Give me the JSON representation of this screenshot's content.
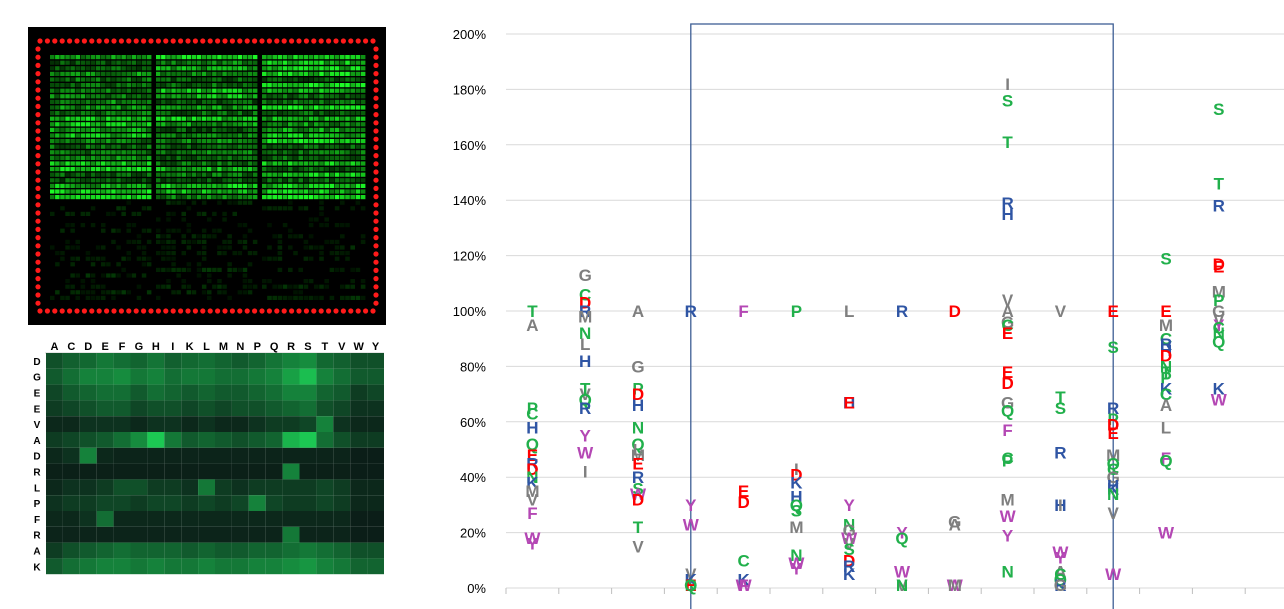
{
  "heatmap": {
    "columns": [
      "A",
      "C",
      "D",
      "E",
      "F",
      "G",
      "H",
      "I",
      "K",
      "L",
      "M",
      "N",
      "P",
      "Q",
      "R",
      "S",
      "T",
      "V",
      "W",
      "Y"
    ],
    "rows": [
      "D",
      "G",
      "E",
      "E",
      "V",
      "A",
      "D",
      "R",
      "L",
      "P",
      "F",
      "R",
      "A",
      "K"
    ],
    "color": "#1fd15a",
    "intensity": [
      [
        0.3,
        0.38,
        0.42,
        0.5,
        0.45,
        0.4,
        0.48,
        0.38,
        0.42,
        0.45,
        0.4,
        0.35,
        0.4,
        0.48,
        0.55,
        0.6,
        0.42,
        0.38,
        0.3,
        0.3
      ],
      [
        0.35,
        0.45,
        0.55,
        0.55,
        0.6,
        0.5,
        0.55,
        0.45,
        0.5,
        0.5,
        0.45,
        0.45,
        0.5,
        0.55,
        0.7,
        0.85,
        0.55,
        0.45,
        0.35,
        0.35
      ],
      [
        0.25,
        0.35,
        0.4,
        0.45,
        0.45,
        0.35,
        0.45,
        0.4,
        0.35,
        0.4,
        0.35,
        0.35,
        0.4,
        0.45,
        0.55,
        0.55,
        0.4,
        0.35,
        0.2,
        0.25
      ],
      [
        0.2,
        0.25,
        0.3,
        0.35,
        0.35,
        0.25,
        0.3,
        0.3,
        0.25,
        0.3,
        0.25,
        0.3,
        0.3,
        0.35,
        0.4,
        0.45,
        0.3,
        0.25,
        0.15,
        0.15
      ],
      [
        0.1,
        0.1,
        0.15,
        0.15,
        0.15,
        0.1,
        0.15,
        0.15,
        0.1,
        0.15,
        0.1,
        0.1,
        0.15,
        0.2,
        0.2,
        0.25,
        0.55,
        0.15,
        0.1,
        0.1
      ],
      [
        0.2,
        0.25,
        0.3,
        0.35,
        0.45,
        0.6,
        0.9,
        0.5,
        0.35,
        0.4,
        0.35,
        0.3,
        0.35,
        0.4,
        0.8,
        0.9,
        0.45,
        0.3,
        0.2,
        0.2
      ],
      [
        0.1,
        0.15,
        0.55,
        0.1,
        0.08,
        0.08,
        0.08,
        0.08,
        0.08,
        0.08,
        0.08,
        0.08,
        0.08,
        0.08,
        0.08,
        0.08,
        0.08,
        0.08,
        0.05,
        0.05
      ],
      [
        0.06,
        0.06,
        0.06,
        0.06,
        0.06,
        0.06,
        0.06,
        0.06,
        0.06,
        0.06,
        0.06,
        0.06,
        0.06,
        0.06,
        0.55,
        0.06,
        0.06,
        0.06,
        0.05,
        0.05
      ],
      [
        0.1,
        0.15,
        0.15,
        0.2,
        0.3,
        0.3,
        0.2,
        0.2,
        0.15,
        0.5,
        0.2,
        0.15,
        0.2,
        0.2,
        0.2,
        0.2,
        0.25,
        0.2,
        0.1,
        0.1
      ],
      [
        0.15,
        0.2,
        0.2,
        0.25,
        0.25,
        0.2,
        0.25,
        0.25,
        0.2,
        0.25,
        0.2,
        0.25,
        0.55,
        0.25,
        0.2,
        0.2,
        0.25,
        0.2,
        0.1,
        0.1
      ],
      [
        0.1,
        0.1,
        0.15,
        0.45,
        0.1,
        0.1,
        0.1,
        0.1,
        0.1,
        0.1,
        0.1,
        0.1,
        0.1,
        0.1,
        0.1,
        0.1,
        0.1,
        0.1,
        0.05,
        0.05
      ],
      [
        0.08,
        0.08,
        0.08,
        0.08,
        0.08,
        0.08,
        0.08,
        0.08,
        0.08,
        0.08,
        0.08,
        0.08,
        0.08,
        0.08,
        0.5,
        0.08,
        0.08,
        0.08,
        0.05,
        0.05
      ],
      [
        0.2,
        0.3,
        0.35,
        0.4,
        0.45,
        0.4,
        0.4,
        0.4,
        0.35,
        0.4,
        0.35,
        0.35,
        0.4,
        0.4,
        0.45,
        0.5,
        0.45,
        0.4,
        0.3,
        0.3
      ],
      [
        0.35,
        0.45,
        0.5,
        0.55,
        0.55,
        0.5,
        0.55,
        0.5,
        0.5,
        0.55,
        0.5,
        0.5,
        0.55,
        0.55,
        0.6,
        0.65,
        0.55,
        0.5,
        0.4,
        0.4
      ]
    ]
  },
  "chart_data": {
    "type": "scatter",
    "title": "",
    "xlabel": "",
    "ylabel": "",
    "ylim": [
      0,
      200
    ],
    "yticks": [
      "0%",
      "20%",
      "40%",
      "60%",
      "80%",
      "100%",
      "120%",
      "140%",
      "160%",
      "180%",
      "200%"
    ],
    "grid": "horizontal",
    "legend": "none",
    "colors": {
      "A": "#7f7f7f",
      "G": "#7f7f7f",
      "I": "#7f7f7f",
      "L": "#7f7f7f",
      "M": "#7f7f7f",
      "V": "#7f7f7f",
      "C": "#21b04b",
      "N": "#21b04b",
      "P": "#21b04b",
      "Q": "#21b04b",
      "S": "#21b04b",
      "T": "#21b04b",
      "D": "#ff0000",
      "E": "#ff0000",
      "F": "#b447b4",
      "W": "#b447b4",
      "Y": "#b447b4",
      "H": "#2f55a4",
      "K": "#2f55a4",
      "R": "#2f55a4"
    },
    "positions": [
      {
        "x": 1,
        "points": [
          [
            "T",
            100
          ],
          [
            "A",
            95
          ],
          [
            "P",
            65
          ],
          [
            "C",
            63
          ],
          [
            "H",
            58
          ],
          [
            "Q",
            52
          ],
          [
            "E",
            48
          ],
          [
            "R",
            45
          ],
          [
            "D",
            43
          ],
          [
            "N",
            40
          ],
          [
            "K",
            38
          ],
          [
            "M",
            35
          ],
          [
            "V",
            32
          ],
          [
            "F",
            27
          ],
          [
            "W",
            18
          ],
          [
            "Y",
            16
          ]
        ]
      },
      {
        "x": 2,
        "points": [
          [
            "G",
            113
          ],
          [
            "C",
            106
          ],
          [
            "D",
            103
          ],
          [
            "R",
            100
          ],
          [
            "M",
            98
          ],
          [
            "N",
            92
          ],
          [
            "L",
            88
          ],
          [
            "H",
            82
          ],
          [
            "T",
            72
          ],
          [
            "V",
            70
          ],
          [
            "Q",
            68
          ],
          [
            "R",
            65
          ],
          [
            "Y",
            55
          ],
          [
            "W",
            49
          ],
          [
            "I",
            42
          ]
        ]
      },
      {
        "x": 3,
        "points": [
          [
            "A",
            100
          ],
          [
            "G",
            80
          ],
          [
            "P",
            72
          ],
          [
            "D",
            70
          ],
          [
            "H",
            66
          ],
          [
            "N",
            58
          ],
          [
            "Q",
            52
          ],
          [
            "L",
            50
          ],
          [
            "M",
            48
          ],
          [
            "E",
            45
          ],
          [
            "R",
            40
          ],
          [
            "S",
            36
          ],
          [
            "W",
            34
          ],
          [
            "D",
            32
          ],
          [
            "T",
            22
          ],
          [
            "V",
            15
          ]
        ]
      },
      {
        "x": 4,
        "points": [
          [
            "R",
            100
          ],
          [
            "Y",
            30
          ],
          [
            "W",
            23
          ],
          [
            "V",
            5
          ],
          [
            "K",
            3
          ],
          [
            "N",
            1
          ],
          [
            "E",
            1
          ],
          [
            "Q",
            1
          ]
        ]
      },
      {
        "x": 5,
        "points": [
          [
            "F",
            100
          ],
          [
            "E",
            35
          ],
          [
            "D",
            31
          ],
          [
            "C",
            10
          ],
          [
            "K",
            3
          ],
          [
            "W",
            1
          ],
          [
            "F",
            1
          ]
        ]
      },
      {
        "x": 6,
        "points": [
          [
            "P",
            100
          ],
          [
            "I",
            43
          ],
          [
            "D",
            41
          ],
          [
            "K",
            38
          ],
          [
            "H",
            33
          ],
          [
            "Q",
            30
          ],
          [
            "S",
            28
          ],
          [
            "M",
            22
          ],
          [
            "N",
            12
          ],
          [
            "W",
            9
          ],
          [
            "Y",
            7
          ]
        ]
      },
      {
        "x": 7,
        "points": [
          [
            "L",
            100
          ],
          [
            "H",
            67
          ],
          [
            "E",
            67
          ],
          [
            "Y",
            30
          ],
          [
            "N",
            23
          ],
          [
            "G",
            21
          ],
          [
            "W",
            18
          ],
          [
            "V",
            16
          ],
          [
            "S",
            14
          ],
          [
            "D",
            10
          ],
          [
            "R",
            8
          ],
          [
            "K",
            5
          ]
        ]
      },
      {
        "x": 8,
        "points": [
          [
            "R",
            100
          ],
          [
            "Y",
            20
          ],
          [
            "Q",
            18
          ],
          [
            "W",
            6
          ],
          [
            "V",
            1
          ],
          [
            "N",
            1
          ]
        ]
      },
      {
        "x": 9,
        "points": [
          [
            "D",
            100
          ],
          [
            "G",
            24
          ],
          [
            "A",
            23
          ],
          [
            "W",
            1
          ],
          [
            "M",
            1
          ]
        ]
      },
      {
        "x": 10,
        "points": [
          [
            "I",
            182
          ],
          [
            "S",
            176
          ],
          [
            "T",
            161
          ],
          [
            "R",
            139
          ],
          [
            "H",
            135
          ],
          [
            "V",
            104
          ],
          [
            "A",
            100
          ],
          [
            "G",
            96
          ],
          [
            "C",
            95
          ],
          [
            "E",
            92
          ],
          [
            "E",
            78
          ],
          [
            "D",
            74
          ],
          [
            "G",
            67
          ],
          [
            "Q",
            64
          ],
          [
            "F",
            57
          ],
          [
            "C",
            47
          ],
          [
            "P",
            46
          ],
          [
            "M",
            32
          ],
          [
            "W",
            26
          ],
          [
            "Y",
            19
          ],
          [
            "N",
            6
          ]
        ]
      },
      {
        "x": 11,
        "points": [
          [
            "V",
            100
          ],
          [
            "T",
            69
          ],
          [
            "S",
            65
          ],
          [
            "R",
            49
          ],
          [
            "H",
            30
          ],
          [
            "I",
            30
          ],
          [
            "W",
            13
          ],
          [
            "Y",
            11
          ],
          [
            "A",
            6
          ],
          [
            "C",
            5
          ],
          [
            "Q",
            3
          ],
          [
            "R",
            1
          ],
          [
            "G",
            1
          ]
        ]
      },
      {
        "x": 12,
        "points": [
          [
            "E",
            100
          ],
          [
            "S",
            87
          ],
          [
            "R",
            65
          ],
          [
            "P",
            61
          ],
          [
            "D",
            59
          ],
          [
            "E",
            56
          ],
          [
            "M",
            48
          ],
          [
            "Q",
            45
          ],
          [
            "C",
            43
          ],
          [
            "G",
            40
          ],
          [
            "H",
            37
          ],
          [
            "K",
            36
          ],
          [
            "N",
            34
          ],
          [
            "V",
            27
          ],
          [
            "W",
            5
          ]
        ]
      },
      {
        "x": 13,
        "points": [
          [
            "S",
            119
          ],
          [
            "E",
            100
          ],
          [
            "M",
            95
          ],
          [
            "C",
            90
          ],
          [
            "R",
            88
          ],
          [
            "H",
            86
          ],
          [
            "D",
            84
          ],
          [
            "N",
            80
          ],
          [
            "T",
            78
          ],
          [
            "P",
            76
          ],
          [
            "K",
            72
          ],
          [
            "C",
            70
          ],
          [
            "A",
            66
          ],
          [
            "L",
            58
          ],
          [
            "F",
            47
          ],
          [
            "Q",
            46
          ],
          [
            "W",
            20
          ]
        ]
      },
      {
        "x": 14,
        "points": [
          [
            "S",
            173
          ],
          [
            "T",
            146
          ],
          [
            "R",
            138
          ],
          [
            "D",
            117
          ],
          [
            "E",
            116
          ],
          [
            "M",
            107
          ],
          [
            "P",
            104
          ],
          [
            "G",
            100
          ],
          [
            "V",
            97
          ],
          [
            "Y",
            95
          ],
          [
            "C",
            94
          ],
          [
            "N",
            92
          ],
          [
            "Q",
            89
          ],
          [
            "K",
            72
          ],
          [
            "W",
            68
          ]
        ]
      }
    ],
    "boxed_positions": [
      4,
      11
    ]
  }
}
